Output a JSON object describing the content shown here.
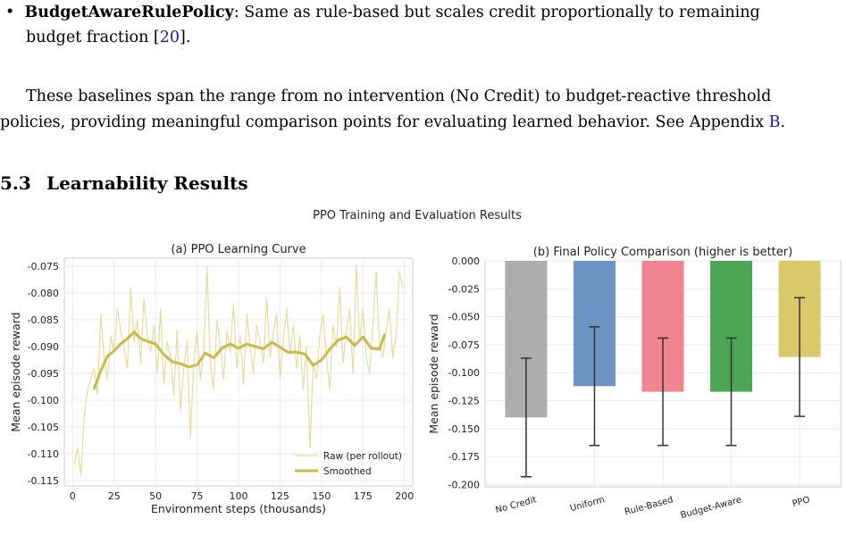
{
  "bullet": {
    "term": "BudgetAwareRulePolicy",
    "line1_rest": ": Same as rule-based but scales credit proportionally to remaining",
    "line2_text": "budget fraction ",
    "citation_open": "[",
    "citation_num": "20",
    "citation_close": "]."
  },
  "paragraph": {
    "line1": "These baselines span the range from no intervention (No Credit) to budget-reactive threshold",
    "line2_text": "policies, providing meaningful comparison points for evaluating learned behavior. See Appendix ",
    "line2_ref": "B",
    "line2_end": "."
  },
  "section": {
    "number": "5.3",
    "title": "Learnability Results"
  },
  "chart_data": [
    {
      "type": "line",
      "figure_title": "PPO Training and Evaluation Results",
      "title": "(a) PPO Learning Curve",
      "xlabel": "Environment steps (thousands)",
      "ylabel": "Mean episode reward",
      "xlim": [
        -5,
        205
      ],
      "ylim": [
        -0.116,
        -0.0735
      ],
      "xticks": [
        "0",
        "25",
        "50",
        "75",
        "100",
        "125",
        "150",
        "175",
        "200"
      ],
      "yticks": [
        "-0.075",
        "-0.080",
        "-0.085",
        "-0.090",
        "-0.095",
        "-0.100",
        "-0.105",
        "-0.110",
        "-0.115"
      ],
      "grid": true,
      "legend_position": "bottom-right",
      "series": [
        {
          "name": "Raw (per rollout)",
          "color": "#e6dc9e",
          "x": [
            1,
            3,
            5,
            7,
            9,
            11,
            13,
            15,
            17,
            19,
            21,
            23,
            25,
            27,
            29,
            31,
            33,
            35,
            37,
            39,
            41,
            43,
            45,
            47,
            49,
            51,
            53,
            55,
            57,
            59,
            61,
            63,
            65,
            67,
            69,
            71,
            73,
            75,
            77,
            79,
            81,
            83,
            85,
            87,
            89,
            91,
            93,
            95,
            97,
            99,
            101,
            103,
            105,
            107,
            109,
            111,
            113,
            115,
            117,
            119,
            121,
            123,
            125,
            127,
            129,
            131,
            133,
            135,
            137,
            139,
            141,
            143,
            145,
            147,
            149,
            151,
            153,
            155,
            157,
            159,
            161,
            163,
            165,
            167,
            169,
            171,
            173,
            175,
            177,
            179,
            181,
            183,
            185,
            187,
            189,
            191,
            193,
            195,
            197,
            199
          ],
          "y": [
            -0.112,
            -0.109,
            -0.114,
            -0.103,
            -0.098,
            -0.096,
            -0.094,
            -0.099,
            -0.084,
            -0.092,
            -0.096,
            -0.088,
            -0.091,
            -0.083,
            -0.087,
            -0.09,
            -0.094,
            -0.079,
            -0.089,
            -0.085,
            -0.093,
            -0.081,
            -0.088,
            -0.091,
            -0.086,
            -0.095,
            -0.083,
            -0.097,
            -0.089,
            -0.092,
            -0.099,
            -0.087,
            -0.102,
            -0.094,
            -0.089,
            -0.107,
            -0.093,
            -0.087,
            -0.096,
            -0.091,
            -0.075,
            -0.093,
            -0.098,
            -0.085,
            -0.09,
            -0.096,
            -0.087,
            -0.091,
            -0.082,
            -0.094,
            -0.088,
            -0.097,
            -0.084,
            -0.09,
            -0.095,
            -0.086,
            -0.089,
            -0.093,
            -0.081,
            -0.092,
            -0.087,
            -0.084,
            -0.096,
            -0.089,
            -0.083,
            -0.091,
            -0.086,
            -0.094,
            -0.088,
            -0.098,
            -0.09,
            -0.109,
            -0.093,
            -0.096,
            -0.088,
            -0.084,
            -0.092,
            -0.098,
            -0.086,
            -0.09,
            -0.079,
            -0.093,
            -0.087,
            -0.083,
            -0.095,
            -0.075,
            -0.089,
            -0.083,
            -0.092,
            -0.095,
            -0.086,
            -0.076,
            -0.09,
            -0.092,
            -0.087,
            -0.083,
            -0.092,
            -0.088,
            -0.076,
            -0.079
          ]
        },
        {
          "name": "Smoothed",
          "color": "#c9b84a",
          "x": [
            13,
            17,
            21,
            25,
            29,
            33,
            37,
            41,
            45,
            50,
            55,
            60,
            65,
            70,
            75,
            80,
            85,
            90,
            95,
            100,
            105,
            110,
            115,
            120,
            125,
            130,
            135,
            140,
            145,
            150,
            155,
            160,
            165,
            170,
            175,
            180,
            185,
            188
          ],
          "y": [
            -0.0978,
            -0.0945,
            -0.0918,
            -0.0908,
            -0.0895,
            -0.0885,
            -0.0873,
            -0.0885,
            -0.089,
            -0.0895,
            -0.0915,
            -0.0928,
            -0.0932,
            -0.0938,
            -0.0934,
            -0.0912,
            -0.0921,
            -0.0903,
            -0.0895,
            -0.0903,
            -0.0895,
            -0.09,
            -0.0904,
            -0.0892,
            -0.0901,
            -0.0911,
            -0.091,
            -0.0914,
            -0.0935,
            -0.0925,
            -0.0905,
            -0.0888,
            -0.0882,
            -0.0898,
            -0.0882,
            -0.0903,
            -0.0905,
            -0.0878
          ]
        }
      ]
    },
    {
      "type": "bar",
      "title": "(b) Final Policy Comparison (higher is better)",
      "xlabel": "",
      "ylabel": "Mean episode reward",
      "ylim": [
        -0.202,
        0.0
      ],
      "yticks": [
        "0.000",
        "-0.025",
        "-0.050",
        "-0.075",
        "-0.100",
        "-0.125",
        "-0.150",
        "-0.175",
        "-0.200"
      ],
      "grid": true,
      "categories": [
        "No Credit",
        "Uniform",
        "Rule-Based",
        "Budget-Aware",
        "PPO"
      ],
      "values": [
        -0.14,
        -0.112,
        -0.117,
        -0.117,
        -0.086
      ],
      "error": [
        0.053,
        0.053,
        0.048,
        0.048,
        0.053
      ],
      "colors": [
        "#a6a6a6",
        "#5f8bbd",
        "#ef7a88",
        "#3e9d48",
        "#d6c45e"
      ]
    }
  ]
}
